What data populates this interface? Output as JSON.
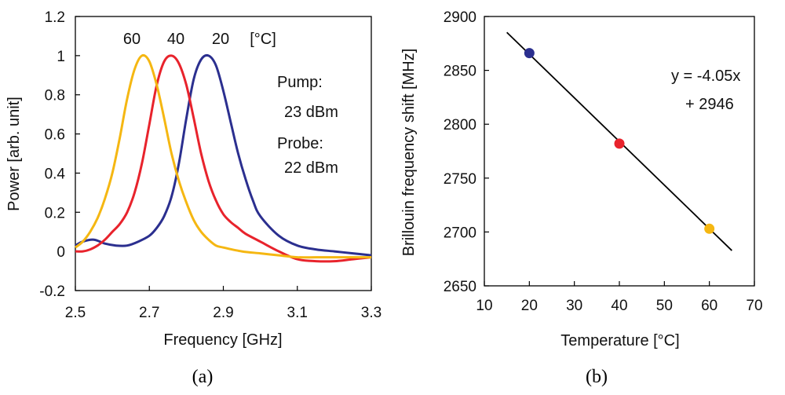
{
  "chart_data": [
    {
      "type": "line",
      "caption": "(a)",
      "xlabel": "Frequency [GHz]",
      "ylabel": "Power [arb. unit]",
      "xlim": [
        2.5,
        3.3
      ],
      "ylim": [
        -0.2,
        1.2
      ],
      "xticks": [
        "2.5",
        "2.7",
        "2.9",
        "3.1",
        "3.3"
      ],
      "yticks": [
        "-0.2",
        "0",
        "0.2",
        "0.4",
        "0.6",
        "0.8",
        "1",
        "1.2"
      ],
      "grid": false,
      "curve_labels": [
        "60",
        "40",
        "20"
      ],
      "curve_unit": "[°C]",
      "annotations": [
        "Pump:",
        "23 dBm",
        "Probe:",
        "22 dBm"
      ],
      "series": [
        {
          "name": "20 °C",
          "color": "#2b2f8f",
          "x": [
            2.5,
            2.52,
            2.55,
            2.58,
            2.61,
            2.64,
            2.67,
            2.7,
            2.72,
            2.74,
            2.76,
            2.78,
            2.8,
            2.82,
            2.84,
            2.86,
            2.88,
            2.9,
            2.92,
            2.94,
            2.96,
            2.98,
            3.0,
            3.05,
            3.1,
            3.15,
            3.2,
            3.25,
            3.3
          ],
          "y": [
            0.03,
            0.05,
            0.06,
            0.04,
            0.03,
            0.03,
            0.05,
            0.08,
            0.12,
            0.18,
            0.28,
            0.45,
            0.68,
            0.88,
            0.98,
            1.0,
            0.95,
            0.82,
            0.66,
            0.5,
            0.37,
            0.26,
            0.18,
            0.08,
            0.03,
            0.01,
            0.0,
            -0.01,
            -0.02
          ]
        },
        {
          "name": "40 °C",
          "color": "#e8232c",
          "x": [
            2.5,
            2.52,
            2.54,
            2.56,
            2.58,
            2.6,
            2.62,
            2.64,
            2.66,
            2.68,
            2.7,
            2.72,
            2.74,
            2.76,
            2.78,
            2.8,
            2.82,
            2.84,
            2.86,
            2.88,
            2.9,
            2.92,
            2.94,
            2.96,
            3.0,
            3.05,
            3.1,
            3.15,
            3.2,
            3.25,
            3.3
          ],
          "y": [
            0.0,
            0.0,
            0.01,
            0.03,
            0.06,
            0.1,
            0.14,
            0.2,
            0.3,
            0.45,
            0.65,
            0.85,
            0.97,
            1.0,
            0.96,
            0.85,
            0.68,
            0.5,
            0.36,
            0.26,
            0.19,
            0.15,
            0.12,
            0.09,
            0.05,
            0.0,
            -0.04,
            -0.05,
            -0.05,
            -0.04,
            -0.03
          ]
        },
        {
          "name": "60 °C",
          "color": "#f5b712",
          "x": [
            2.5,
            2.52,
            2.54,
            2.56,
            2.58,
            2.6,
            2.62,
            2.64,
            2.66,
            2.68,
            2.7,
            2.72,
            2.74,
            2.76,
            2.78,
            2.8,
            2.82,
            2.84,
            2.86,
            2.88,
            2.9,
            2.95,
            3.0,
            3.05,
            3.1,
            3.15,
            3.2,
            3.25,
            3.3
          ],
          "y": [
            0.02,
            0.05,
            0.1,
            0.17,
            0.27,
            0.4,
            0.58,
            0.78,
            0.93,
            1.0,
            0.97,
            0.85,
            0.68,
            0.5,
            0.36,
            0.25,
            0.16,
            0.1,
            0.06,
            0.03,
            0.02,
            0.0,
            -0.01,
            -0.02,
            -0.03,
            -0.03,
            -0.03,
            -0.03,
            -0.03
          ]
        }
      ]
    },
    {
      "type": "scatter",
      "caption": "(b)",
      "xlabel": "Temperature [°C]",
      "ylabel": "Brillouin frequency shift [MHz]",
      "xlim": [
        10,
        70
      ],
      "ylim": [
        2650,
        2900
      ],
      "xticks": [
        "10",
        "20",
        "30",
        "40",
        "50",
        "60",
        "70"
      ],
      "yticks": [
        "2650",
        "2700",
        "2750",
        "2800",
        "2850",
        "2900"
      ],
      "grid": false,
      "points": [
        {
          "x": 20,
          "y": 2866,
          "color": "#2b2f8f"
        },
        {
          "x": 40,
          "y": 2782,
          "color": "#e8232c"
        },
        {
          "x": 60,
          "y": 2703,
          "color": "#f5b712"
        }
      ],
      "fit": {
        "slope": -4.05,
        "intercept": 2946,
        "x_range": [
          15,
          65
        ],
        "color": "#000000"
      },
      "equation_lines": [
        "y = -4.05x",
        "+ 2946"
      ]
    }
  ]
}
